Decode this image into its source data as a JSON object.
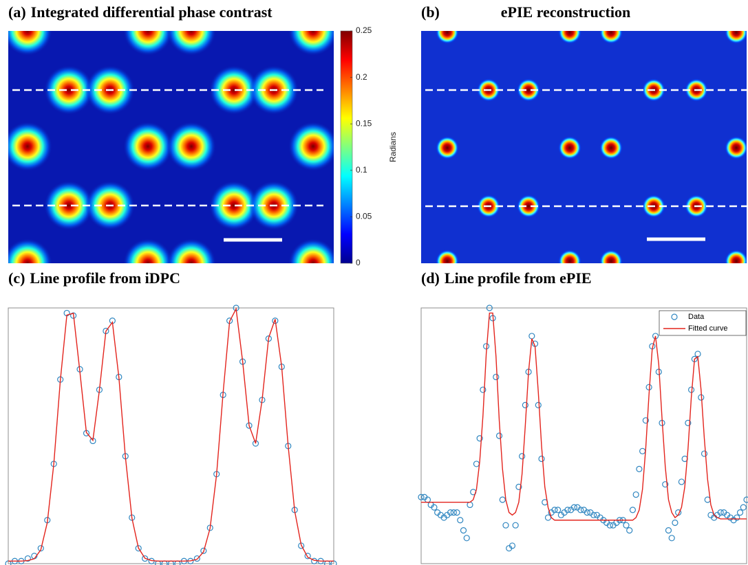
{
  "chart_data": [
    {
      "type": "heatmap",
      "label": "(a)",
      "title": "Integrated differential phase contrast",
      "colormap": "jet",
      "colorbar": {
        "label": "Radians",
        "lim": [
          0,
          0.25
        ],
        "ticks": [
          0,
          0.05,
          0.1,
          0.15,
          0.2,
          0.25
        ]
      }
    },
    {
      "type": "heatmap",
      "label": "(b)",
      "title": "ePIE reconstruction"
    },
    {
      "type": "line",
      "label": "(c)",
      "title": "Line profile from iDPC",
      "x": [
        0,
        2,
        4,
        6,
        8,
        10,
        12,
        14,
        16,
        18,
        20,
        22,
        24,
        26,
        28,
        30,
        32,
        34,
        36,
        38,
        40,
        42,
        44,
        46,
        48,
        50,
        52,
        54,
        56,
        58,
        60,
        62,
        64,
        66,
        68,
        70,
        72,
        74,
        76,
        78,
        80,
        82,
        84,
        86,
        88,
        90,
        92,
        94,
        96,
        98,
        100
      ],
      "xlim": [
        0,
        100
      ],
      "ylim": [
        0,
        1
      ],
      "series": [
        {
          "mode": "markers",
          "color": "#2f86c0",
          "values": [
            0.0,
            0.01,
            0.01,
            0.02,
            0.03,
            0.06,
            0.17,
            0.39,
            0.72,
            0.98,
            0.97,
            0.76,
            0.51,
            0.48,
            0.68,
            0.91,
            0.95,
            0.73,
            0.42,
            0.18,
            0.06,
            0.02,
            0.01,
            0.0,
            0.0,
            0.0,
            0.0,
            0.01,
            0.01,
            0.02,
            0.05,
            0.14,
            0.35,
            0.66,
            0.95,
            1.0,
            0.79,
            0.54,
            0.47,
            0.64,
            0.88,
            0.95,
            0.77,
            0.46,
            0.21,
            0.07,
            0.03,
            0.01,
            0.01,
            0.0,
            0.0
          ]
        },
        {
          "mode": "line",
          "color": "#e3231c",
          "values": [
            0.01,
            0.01,
            0.01,
            0.012,
            0.019,
            0.054,
            0.161,
            0.391,
            0.717,
            0.972,
            0.979,
            0.751,
            0.513,
            0.482,
            0.678,
            0.909,
            0.944,
            0.727,
            0.416,
            0.178,
            0.061,
            0.021,
            0.012,
            0.01,
            0.01,
            0.01,
            0.01,
            0.01,
            0.011,
            0.017,
            0.046,
            0.138,
            0.348,
            0.667,
            0.947,
            0.996,
            0.792,
            0.54,
            0.47,
            0.641,
            0.883,
            0.956,
            0.771,
            0.46,
            0.206,
            0.073,
            0.025,
            0.013,
            0.01,
            0.01,
            0.01
          ]
        }
      ]
    },
    {
      "type": "line",
      "label": "(d)",
      "title": "Line profile from ePIE",
      "x": [
        0,
        1,
        2,
        3,
        4,
        5,
        6,
        7,
        8,
        9,
        10,
        11,
        12,
        13,
        14,
        15,
        16,
        17,
        18,
        19,
        20,
        21,
        22,
        23,
        24,
        25,
        26,
        27,
        28,
        29,
        30,
        31,
        32,
        33,
        34,
        35,
        36,
        37,
        38,
        39,
        40,
        41,
        42,
        43,
        44,
        45,
        46,
        47,
        48,
        49,
        50,
        51,
        52,
        53,
        54,
        55,
        56,
        57,
        58,
        59,
        60,
        61,
        62,
        63,
        64,
        65,
        66,
        67,
        68,
        69,
        70,
        71,
        72,
        73,
        74,
        75,
        76,
        77,
        78,
        79,
        80,
        81,
        82,
        83,
        84,
        85,
        86,
        87,
        88,
        89,
        90,
        91,
        92,
        93,
        94,
        95,
        96,
        97,
        98,
        99,
        100
      ],
      "xlim": [
        0,
        100
      ],
      "ylim": [
        0,
        1
      ],
      "legend": "upper right",
      "series": [
        {
          "name": "Data",
          "mode": "markers",
          "color": "#2f86c0",
          "values": [
            0.26,
            0.26,
            0.25,
            0.23,
            0.22,
            0.2,
            0.19,
            0.18,
            0.19,
            0.2,
            0.2,
            0.2,
            0.17,
            0.13,
            0.1,
            0.23,
            0.28,
            0.39,
            0.49,
            0.68,
            0.85,
            1.0,
            0.96,
            0.73,
            0.5,
            0.25,
            0.15,
            0.06,
            0.07,
            0.15,
            0.3,
            0.42,
            0.62,
            0.75,
            0.89,
            0.86,
            0.62,
            0.41,
            0.24,
            0.18,
            0.2,
            0.21,
            0.21,
            0.19,
            0.2,
            0.21,
            0.21,
            0.22,
            0.22,
            0.21,
            0.21,
            0.2,
            0.2,
            0.19,
            0.19,
            0.18,
            0.17,
            0.16,
            0.15,
            0.15,
            0.16,
            0.17,
            0.17,
            0.15,
            0.13,
            0.21,
            0.27,
            0.37,
            0.44,
            0.56,
            0.69,
            0.85,
            0.89,
            0.75,
            0.55,
            0.31,
            0.13,
            0.1,
            0.16,
            0.2,
            0.32,
            0.41,
            0.55,
            0.68,
            0.8,
            0.82,
            0.65,
            0.43,
            0.25,
            0.19,
            0.18,
            0.19,
            0.2,
            0.2,
            0.19,
            0.18,
            0.17,
            0.18,
            0.2,
            0.22,
            0.25
          ]
        },
        {
          "name": "Fitted curve",
          "mode": "line",
          "color": "#e3231c",
          "values": [
            0.24,
            0.24,
            0.24,
            0.24,
            0.24,
            0.24,
            0.24,
            0.24,
            0.24,
            0.24,
            0.24,
            0.24,
            0.24,
            0.24,
            0.24,
            0.24,
            0.25,
            0.29,
            0.4,
            0.58,
            0.82,
            0.98,
            0.98,
            0.81,
            0.56,
            0.37,
            0.25,
            0.2,
            0.19,
            0.2,
            0.24,
            0.35,
            0.54,
            0.75,
            0.88,
            0.85,
            0.67,
            0.46,
            0.3,
            0.22,
            0.18,
            0.17,
            0.17,
            0.17,
            0.17,
            0.17,
            0.17,
            0.17,
            0.17,
            0.17,
            0.17,
            0.17,
            0.17,
            0.17,
            0.17,
            0.17,
            0.17,
            0.17,
            0.17,
            0.17,
            0.17,
            0.17,
            0.17,
            0.17,
            0.17,
            0.17,
            0.18,
            0.21,
            0.29,
            0.45,
            0.66,
            0.84,
            0.89,
            0.78,
            0.57,
            0.38,
            0.25,
            0.2,
            0.18,
            0.19,
            0.22,
            0.3,
            0.45,
            0.65,
            0.8,
            0.81,
            0.68,
            0.49,
            0.33,
            0.23,
            0.19,
            0.18,
            0.175,
            0.175,
            0.175,
            0.175,
            0.175,
            0.175,
            0.175,
            0.175,
            0.175
          ]
        }
      ]
    }
  ]
}
